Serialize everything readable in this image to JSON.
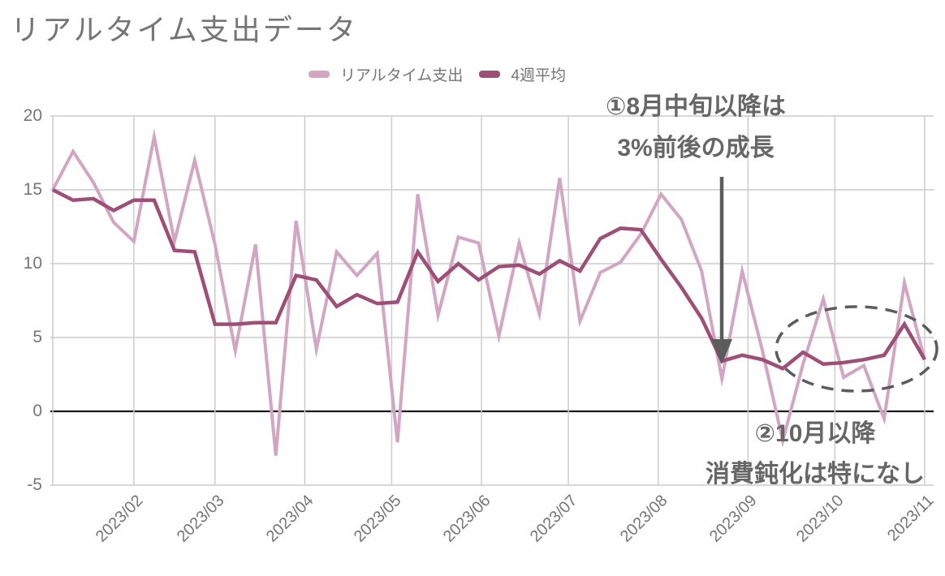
{
  "title": "リアルタイム支出データ",
  "colors": {
    "background": "#ffffff",
    "realtime_line": "#d2a6c2",
    "average_line": "#9e4f78",
    "grid": "#cccccc",
    "zero_line": "#1a1a1a",
    "axis_text": "#757575",
    "annotation_text": "#666666",
    "annotation_shapes": "#5c5c5c"
  },
  "legend": {
    "items": [
      {
        "label": "リアルタイム支出",
        "color": "#d2a6c2"
      },
      {
        "label": "4週平均",
        "color": "#9e4f78"
      }
    ]
  },
  "y_axis": {
    "tick_labels": [
      "20",
      "15",
      "10",
      "5",
      "0",
      "-5"
    ]
  },
  "x_axis": {
    "tick_labels": [
      "2023/02",
      "2023/03",
      "2023/04",
      "2023/05",
      "2023/06",
      "2023/07",
      "2023/08",
      "2023/09",
      "2023/10",
      "2023/11"
    ]
  },
  "annotations": [
    {
      "lines": [
        "①8月中旬以降は",
        "3%前後の成長"
      ],
      "shape": "down-arrow",
      "points_to": {
        "date": "2023-08-23",
        "series": "4週平均",
        "value": 3.4
      }
    },
    {
      "lines": [
        "②10月以降",
        "消費鈍化は特になし"
      ],
      "shape": "dashed-ellipse",
      "around": {
        "from": "2023-09-20",
        "to": "2023-11-01"
      }
    }
  ],
  "chart_data": {
    "type": "line",
    "title": "リアルタイム支出データ",
    "xlabel": "",
    "ylabel": "",
    "ylim": [
      -5,
      20
    ],
    "yticks": [
      20,
      15,
      10,
      5,
      0,
      -5
    ],
    "grid": true,
    "legend_position": "top",
    "x_tick_labels": [
      "2023/02",
      "2023/03",
      "2023/04",
      "2023/05",
      "2023/06",
      "2023/07",
      "2023/08",
      "2023/09",
      "2023/10",
      "2023/11"
    ],
    "x_tick_dates": [
      "2023-02-01",
      "2023-03-01",
      "2023-04-01",
      "2023-05-01",
      "2023-06-01",
      "2023-07-01",
      "2023-08-01",
      "2023-09-01",
      "2023-10-01",
      "2023-11-01"
    ],
    "x_dates": [
      "2023-01-04",
      "2023-01-11",
      "2023-01-18",
      "2023-01-25",
      "2023-02-01",
      "2023-02-08",
      "2023-02-15",
      "2023-02-22",
      "2023-03-01",
      "2023-03-08",
      "2023-03-15",
      "2023-03-22",
      "2023-03-29",
      "2023-04-05",
      "2023-04-12",
      "2023-04-19",
      "2023-04-26",
      "2023-05-03",
      "2023-05-10",
      "2023-05-17",
      "2023-05-24",
      "2023-05-31",
      "2023-06-07",
      "2023-06-14",
      "2023-06-21",
      "2023-06-28",
      "2023-07-05",
      "2023-07-12",
      "2023-07-19",
      "2023-07-26",
      "2023-08-02",
      "2023-08-09",
      "2023-08-16",
      "2023-08-23",
      "2023-08-30",
      "2023-09-06",
      "2023-09-13",
      "2023-09-20",
      "2023-09-27",
      "2023-10-04",
      "2023-10-11",
      "2023-10-18",
      "2023-10-25",
      "2023-11-01"
    ],
    "series": [
      {
        "name": "リアルタイム支出",
        "key": "realtime-spending-line",
        "color": "#d2a6c2",
        "line_width": 4,
        "values": [
          15.0,
          17.6,
          15.5,
          12.8,
          11.5,
          18.6,
          11.5,
          17.0,
          11.3,
          4.1,
          11.3,
          -3.0,
          12.9,
          4.2,
          10.8,
          9.2,
          10.7,
          -2.1,
          14.7,
          6.5,
          11.8,
          11.4,
          5.1,
          11.4,
          6.6,
          15.8,
          6.1,
          9.4,
          10.1,
          12.0,
          14.7,
          13.0,
          9.5,
          2.2,
          9.5,
          4.1,
          -2.0,
          3.2,
          7.6,
          2.3,
          3.1,
          -0.5,
          8.7,
          3.5
        ]
      },
      {
        "name": "4週平均",
        "key": "four-week-average-line",
        "color": "#9e4f78",
        "line_width": 4.5,
        "values": [
          15.0,
          14.3,
          14.4,
          13.6,
          14.3,
          14.3,
          10.9,
          10.8,
          5.9,
          5.9,
          6.0,
          6.0,
          9.2,
          8.9,
          7.1,
          7.9,
          7.3,
          7.4,
          10.8,
          8.8,
          10.0,
          8.9,
          9.8,
          9.9,
          9.3,
          10.2,
          9.5,
          11.7,
          12.4,
          12.3,
          10.3,
          8.4,
          6.3,
          3.4,
          3.8,
          3.5,
          2.9,
          4.0,
          3.2,
          3.3,
          3.5,
          3.8,
          5.9,
          3.5
        ]
      }
    ]
  }
}
